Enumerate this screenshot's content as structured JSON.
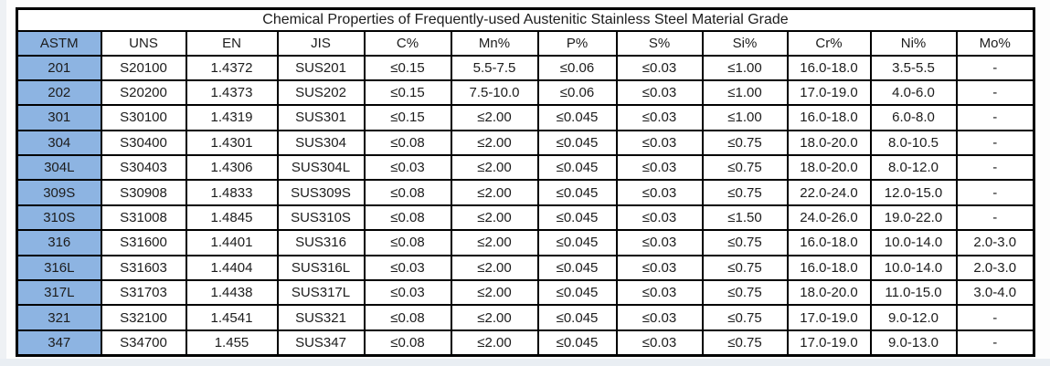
{
  "table": {
    "title": "Chemical Properties of Frequently-used Austenitic Stainless Steel Material Grade",
    "columns": [
      "ASTM",
      "UNS",
      "EN",
      "JIS",
      "C%",
      "Mn%",
      "P%",
      "S%",
      "Si%",
      "Cr%",
      "Ni%",
      "Mo%"
    ],
    "rows": [
      [
        "201",
        "S20100",
        "1.4372",
        "SUS201",
        "≤0.15",
        "5.5-7.5",
        "≤0.06",
        "≤0.03",
        "≤1.00",
        "16.0-18.0",
        "3.5-5.5",
        "-"
      ],
      [
        "202",
        "S20200",
        "1.4373",
        "SUS202",
        "≤0.15",
        "7.5-10.0",
        "≤0.06",
        "≤0.03",
        "≤1.00",
        "17.0-19.0",
        "4.0-6.0",
        "-"
      ],
      [
        "301",
        "S30100",
        "1.4319",
        "SUS301",
        "≤0.15",
        "≤2.00",
        "≤0.045",
        "≤0.03",
        "≤1.00",
        "16.0-18.0",
        "6.0-8.0",
        "-"
      ],
      [
        "304",
        "S30400",
        "1.4301",
        "SUS304",
        "≤0.08",
        "≤2.00",
        "≤0.045",
        "≤0.03",
        "≤0.75",
        "18.0-20.0",
        "8.0-10.5",
        "-"
      ],
      [
        "304L",
        "S30403",
        "1.4306",
        "SUS304L",
        "≤0.03",
        "≤2.00",
        "≤0.045",
        "≤0.03",
        "≤0.75",
        "18.0-20.0",
        "8.0-12.0",
        "-"
      ],
      [
        "309S",
        "S30908",
        "1.4833",
        "SUS309S",
        "≤0.08",
        "≤2.00",
        "≤0.045",
        "≤0.03",
        "≤0.75",
        "22.0-24.0",
        "12.0-15.0",
        "-"
      ],
      [
        "310S",
        "S31008",
        "1.4845",
        "SUS310S",
        "≤0.08",
        "≤2.00",
        "≤0.045",
        "≤0.03",
        "≤1.50",
        "24.0-26.0",
        "19.0-22.0",
        "-"
      ],
      [
        "316",
        "S31600",
        "1.4401",
        "SUS316",
        "≤0.08",
        "≤2.00",
        "≤0.045",
        "≤0.03",
        "≤0.75",
        "16.0-18.0",
        "10.0-14.0",
        "2.0-3.0"
      ],
      [
        "316L",
        "S31603",
        "1.4404",
        "SUS316L",
        "≤0.03",
        "≤2.00",
        "≤0.045",
        "≤0.03",
        "≤0.75",
        "16.0-18.0",
        "10.0-14.0",
        "2.0-3.0"
      ],
      [
        "317L",
        "S31703",
        "1.4438",
        "SUS317L",
        "≤0.03",
        "≤2.00",
        "≤0.045",
        "≤0.03",
        "≤0.75",
        "18.0-20.0",
        "11.0-15.0",
        "3.0-4.0"
      ],
      [
        "321",
        "S32100",
        "1.4541",
        "SUS321",
        "≤0.08",
        "≤2.00",
        "≤0.045",
        "≤0.03",
        "≤0.75",
        "17.0-19.0",
        "9.0-12.0",
        "-"
      ],
      [
        "347",
        "S34700",
        "1.455",
        "SUS347",
        "≤0.08",
        "≤2.00",
        "≤0.045",
        "≤0.03",
        "≤0.75",
        "17.0-19.0",
        "9.0-13.0",
        "-"
      ]
    ]
  },
  "colors": {
    "accent_fill": "#8db4e2",
    "border": "#000000",
    "text": "#1c1c1c"
  }
}
